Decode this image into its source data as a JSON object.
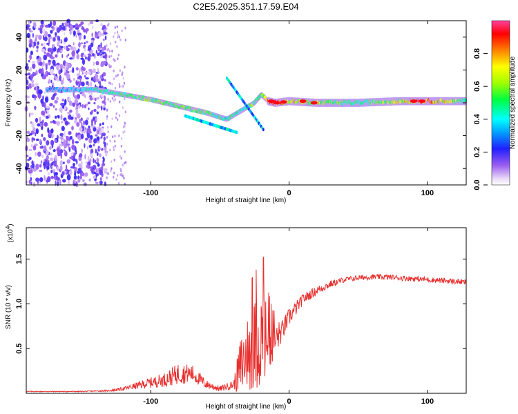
{
  "title": "C2E5.2025.351.17.59.E04",
  "chart_data": [
    {
      "type": "heatmap",
      "name": "spectrogram",
      "xlabel": "Height of straight line (km)",
      "ylabel": "Frequency (Hz)",
      "xlim": [
        -190,
        128
      ],
      "ylim": [
        -50,
        50
      ],
      "x_ticks": [
        -100,
        0,
        100
      ],
      "y_ticks": [
        -40,
        -20,
        0,
        20,
        40
      ],
      "y_tick_labels": [
        "-40",
        "-20",
        "0",
        "20",
        "40"
      ],
      "colorbar": {
        "label": "Normalized spectral amplitude",
        "range": [
          0,
          1
        ],
        "ticks": [
          0.0,
          0.2,
          0.4,
          0.6,
          0.8
        ],
        "tick_labels": [
          "0.0",
          "0.2",
          "0.4",
          "0.6",
          "0.8"
        ]
      },
      "ridge": {
        "x": [
          -180,
          -160,
          -140,
          -120,
          -100,
          -80,
          -60,
          -45,
          -35,
          -25,
          -20,
          -15,
          -10,
          0,
          20,
          50,
          80,
          100,
          128
        ],
        "freq": [
          8,
          8,
          8,
          5,
          2,
          -2,
          -6,
          -10,
          -5,
          0,
          5,
          1,
          0,
          1,
          0,
          0,
          1,
          1,
          1
        ],
        "amplitude": [
          0.3,
          0.35,
          0.5,
          0.55,
          0.6,
          0.6,
          0.55,
          0.5,
          0.5,
          0.6,
          0.5,
          0.95,
          0.9,
          0.8,
          0.7,
          0.5,
          0.7,
          0.95,
          0.5
        ]
      }
    },
    {
      "type": "line",
      "name": "snr",
      "xlabel": "Height of straight line (km)",
      "ylabel": "SNR (10 * v/v)",
      "multiplier_label": "(x10",
      "multiplier_exponent": "4",
      "multiplier_close": ")",
      "xlim": [
        -190,
        128
      ],
      "ylim": [
        0,
        1.85
      ],
      "x_ticks": [
        -100,
        0,
        100
      ],
      "y_ticks": [
        0.5,
        1.0,
        1.5
      ],
      "y_tick_labels": [
        "0.5",
        "1.0",
        "1.5"
      ],
      "series": [
        {
          "name": "SNR",
          "color": "#e8302e",
          "envelope_x": [
            -190,
            -150,
            -130,
            -120,
            -100,
            -90,
            -80,
            -70,
            -60,
            -50,
            -40,
            -35,
            -30,
            -25,
            -20,
            -18,
            -15,
            -12,
            -10,
            -5,
            0,
            5,
            10,
            20,
            30,
            40,
            50,
            60,
            70,
            80,
            90,
            100,
            110,
            120,
            128
          ],
          "envelope_y": [
            0.02,
            0.02,
            0.03,
            0.05,
            0.12,
            0.15,
            0.22,
            0.22,
            0.1,
            0.05,
            0.1,
            0.3,
            0.45,
            0.55,
            0.6,
            0.65,
            0.5,
            0.45,
            0.6,
            0.7,
            0.85,
            0.95,
            1.05,
            1.15,
            1.22,
            1.27,
            1.29,
            1.3,
            1.3,
            1.29,
            1.28,
            1.27,
            1.26,
            1.25,
            1.24
          ],
          "noise_amp": [
            0.005,
            0.005,
            0.01,
            0.02,
            0.06,
            0.08,
            0.12,
            0.1,
            0.05,
            0.03,
            0.05,
            0.35,
            0.45,
            0.5,
            0.55,
            0.55,
            0.4,
            0.3,
            0.2,
            0.12,
            0.1,
            0.08,
            0.06,
            0.05,
            0.04,
            0.03,
            0.03,
            0.03,
            0.03,
            0.03,
            0.03,
            0.03,
            0.03,
            0.03,
            0.03
          ]
        }
      ]
    }
  ]
}
